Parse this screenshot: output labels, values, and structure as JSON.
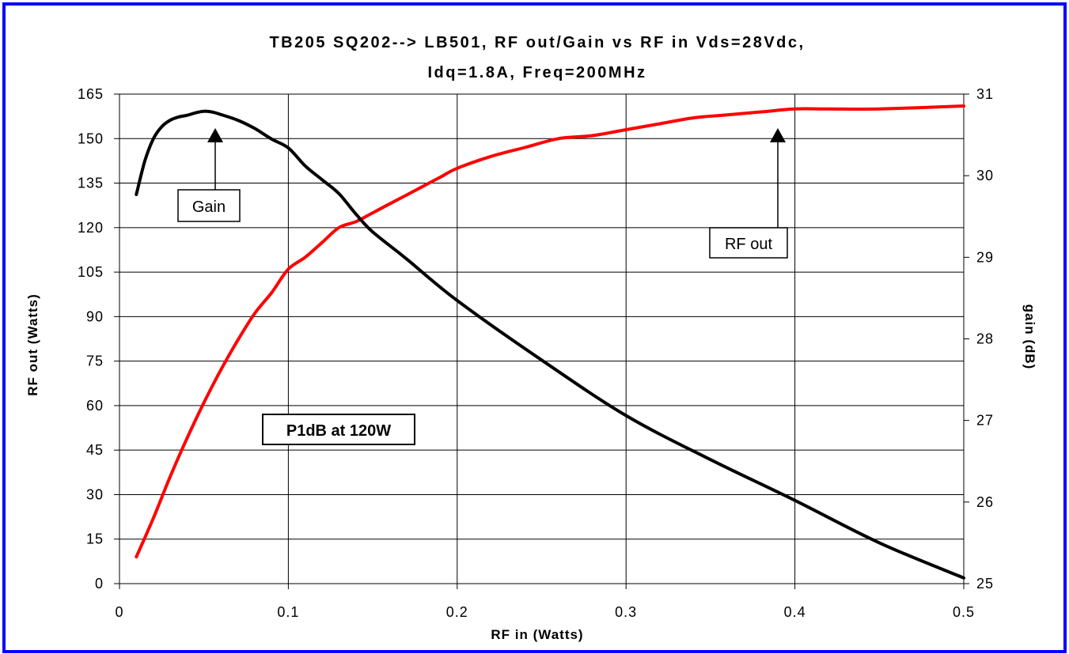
{
  "colors": {
    "frame": "#0000ff",
    "rf_out_series": "#ff0000",
    "gain_series": "#000000",
    "grid": "#000000",
    "background": "#ffffff"
  },
  "chart_data": {
    "type": "line",
    "title_line1": "TB205 SQ202--> LB501, RF out/Gain vs RF in Vds=28Vdc,",
    "title_line2": "Idq=1.8A, Freq=200MHz",
    "xlabel": "RF in (Watts)",
    "ylabel": "RF out (Watts)",
    "y2label": "gain (dB)",
    "xlim": [
      0,
      0.5
    ],
    "ylim": [
      0,
      165
    ],
    "y2lim": [
      25,
      31
    ],
    "x_ticks": [
      "0",
      "0.1",
      "0.2",
      "0.3",
      "0.4",
      "0.5"
    ],
    "y_ticks": [
      "0",
      "15",
      "30",
      "45",
      "60",
      "75",
      "90",
      "105",
      "120",
      "135",
      "150",
      "165"
    ],
    "y2_ticks": [
      "25",
      "26",
      "27",
      "28",
      "29",
      "30",
      "31"
    ],
    "grid": true,
    "series": [
      {
        "axis": "left",
        "x": [
          0.01,
          0.02,
          0.03,
          0.04,
          0.05,
          0.06,
          0.07,
          0.08,
          0.09,
          0.1,
          0.11,
          0.12,
          0.13,
          0.14,
          0.15,
          0.16,
          0.17,
          0.18,
          0.19,
          0.2,
          0.22,
          0.24,
          0.26,
          0.28,
          0.3,
          0.32,
          0.34,
          0.36,
          0.38,
          0.4,
          0.42,
          0.45,
          0.5
        ],
        "values": [
          9,
          22,
          36,
          49,
          61,
          72,
          82,
          91,
          98,
          106,
          110,
          115,
          120,
          122,
          125,
          128,
          131,
          134,
          137,
          140,
          144,
          147,
          150,
          151,
          153,
          155,
          157,
          158,
          159,
          160,
          160,
          160,
          161
        ]
      },
      {
        "axis": "right",
        "x": [
          0.01,
          0.015,
          0.02,
          0.025,
          0.03,
          0.035,
          0.04,
          0.045,
          0.05,
          0.055,
          0.06,
          0.07,
          0.08,
          0.09,
          0.1,
          0.11,
          0.12,
          0.13,
          0.14,
          0.15,
          0.17,
          0.2,
          0.25,
          0.3,
          0.35,
          0.4,
          0.45,
          0.5
        ],
        "values": [
          29.77,
          30.18,
          30.45,
          30.6,
          30.68,
          30.72,
          30.74,
          30.77,
          30.79,
          30.78,
          30.75,
          30.68,
          30.58,
          30.45,
          30.34,
          30.12,
          29.95,
          29.78,
          29.53,
          29.31,
          28.98,
          28.47,
          27.74,
          27.06,
          26.52,
          26.02,
          25.5,
          25.07
        ]
      }
    ],
    "annotations": {
      "gain_label": "Gain",
      "rf_out_label": "RF out",
      "p1db_label": "P1dB at 120W"
    }
  }
}
